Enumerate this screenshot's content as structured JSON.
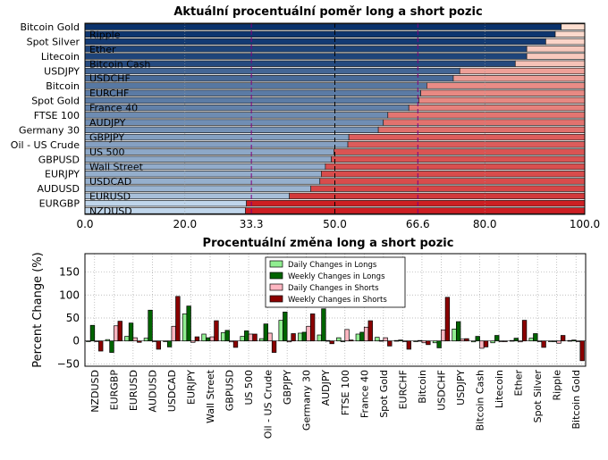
{
  "chart_data": [
    {
      "type": "bar",
      "orientation": "horizontal-stacked",
      "title": "Aktuální procentuální poměr long a short pozic",
      "categories": [
        "Bitcoin Gold",
        "Ripple",
        "Spot Silver",
        "Ether",
        "Litecoin",
        "Bitcoin Cash",
        "USDJPY",
        "USDCHF",
        "Bitcoin",
        "EURCHF",
        "Spot Gold",
        "France 40",
        "FTSE 100",
        "AUDJPY",
        "Germany 30",
        "GBPJPY",
        "Oil - US Crude",
        "US 500",
        "GBPUSD",
        "Wall Street",
        "EURJPY",
        "USDCAD",
        "AUDUSD",
        "EURUSD",
        "EURGBP",
        "NZDUSD"
      ],
      "long_values": [
        95.3,
        94.1,
        92.2,
        88.4,
        88.4,
        86.1,
        75.0,
        73.7,
        68.4,
        67.2,
        66.8,
        64.8,
        60.6,
        59.7,
        58.7,
        52.8,
        52.6,
        49.8,
        49.3,
        48.1,
        47.3,
        47.0,
        45.2,
        40.9,
        32.3,
        32.1
      ],
      "xlim": [
        0,
        100
      ],
      "xticks": [
        "0.0",
        "20.0",
        "33.3",
        "50.0",
        "66.6",
        "80.0",
        "100.0"
      ],
      "xtick_values": [
        0,
        20,
        33.3,
        50,
        66.6,
        80,
        100
      ],
      "reference_lines": [
        33.3,
        50,
        66.6
      ],
      "colors": {
        "long_dark": "#08306b",
        "long_light": "#c6dbef",
        "short_light": "#fee0d2",
        "short_dark": "#cb181d",
        "threshold": "#800080"
      }
    },
    {
      "type": "bar",
      "orientation": "vertical-grouped",
      "title": "Procentuální změna long a short pozic",
      "ylabel": "Percent Change (%)",
      "ylim": [
        -55,
        190
      ],
      "yticks": [
        -50,
        0,
        50,
        100,
        150
      ],
      "grid": true,
      "legend_position": "top-center",
      "categories": [
        "NZDUSD",
        "EURGBP",
        "EURUSD",
        "AUDUSD",
        "USDCAD",
        "EURJPY",
        "Wall Street",
        "GBPUSD",
        "US 500",
        "Oil - US Crude",
        "GBPJPY",
        "Germany 30",
        "AUDJPY",
        "FTSE 100",
        "France 40",
        "Spot Gold",
        "EURCHF",
        "Bitcoin",
        "USDCHF",
        "USDJPY",
        "Bitcoin Cash",
        "Litecoin",
        "Ether",
        "Spot Silver",
        "Ripple",
        "Bitcoin Gold"
      ],
      "series": [
        {
          "name": "Daily Changes in Longs",
          "color": "#90ee90",
          "values": [
            0,
            3,
            10,
            6,
            0,
            59,
            15,
            18,
            10,
            5,
            45,
            17,
            13,
            7,
            15,
            8,
            1,
            0,
            -4,
            26,
            -2,
            -4,
            1,
            6,
            -1,
            1
          ]
        },
        {
          "name": "Weekly Changes in Longs",
          "color": "#006400",
          "values": [
            34,
            -25,
            39,
            67,
            -13,
            76,
            7,
            23,
            22,
            37,
            63,
            19,
            70,
            0,
            19,
            1,
            2,
            1,
            -15,
            42,
            10,
            12,
            6,
            16,
            0,
            2
          ]
        },
        {
          "name": "Daily Changes in Shorts",
          "color": "#ffb6c1",
          "values": [
            -1,
            33,
            7,
            -1,
            32,
            -3,
            9,
            -2,
            15,
            17,
            -2,
            32,
            1,
            25,
            30,
            7,
            0,
            -4,
            24,
            4,
            -16,
            0,
            -2,
            -1,
            -5,
            0
          ]
        },
        {
          "name": "Weekly Changes in Shorts",
          "color": "#8b0000",
          "values": [
            -22,
            43,
            -3,
            -18,
            97,
            9,
            44,
            -14,
            15,
            -25,
            16,
            59,
            -6,
            2,
            44,
            -11,
            -18,
            -8,
            95,
            5,
            -13,
            0,
            45,
            -14,
            12,
            -43
          ]
        }
      ]
    }
  ]
}
